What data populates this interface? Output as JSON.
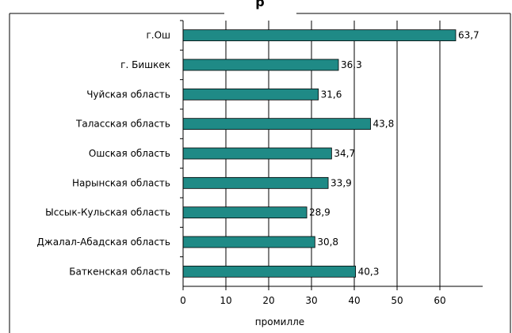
{
  "chart_data": {
    "type": "bar",
    "orientation": "horizontal",
    "title_fragment": "р",
    "categories": [
      "г.Ош",
      "г. Бишкек",
      "Чуйская область",
      "Таласская область",
      "Ошская область",
      "Нарынская область",
      "Ыссык-Кульская область",
      "Джалал-Абадская область",
      "Баткенская область"
    ],
    "values": [
      63.7,
      36.3,
      31.6,
      43.8,
      34.7,
      33.9,
      28.9,
      30.8,
      40.3
    ],
    "value_labels": [
      "63,7",
      "36,3",
      "31,6",
      "43,8",
      "34,7",
      "33,9",
      "28,9",
      "30,8",
      "40,3"
    ],
    "xlabel": "промилле",
    "xlim": [
      0,
      70
    ],
    "xticks": [
      0,
      10,
      20,
      30,
      40,
      50,
      60
    ],
    "grid": "vertical",
    "bar_color": "#1f8a86"
  }
}
